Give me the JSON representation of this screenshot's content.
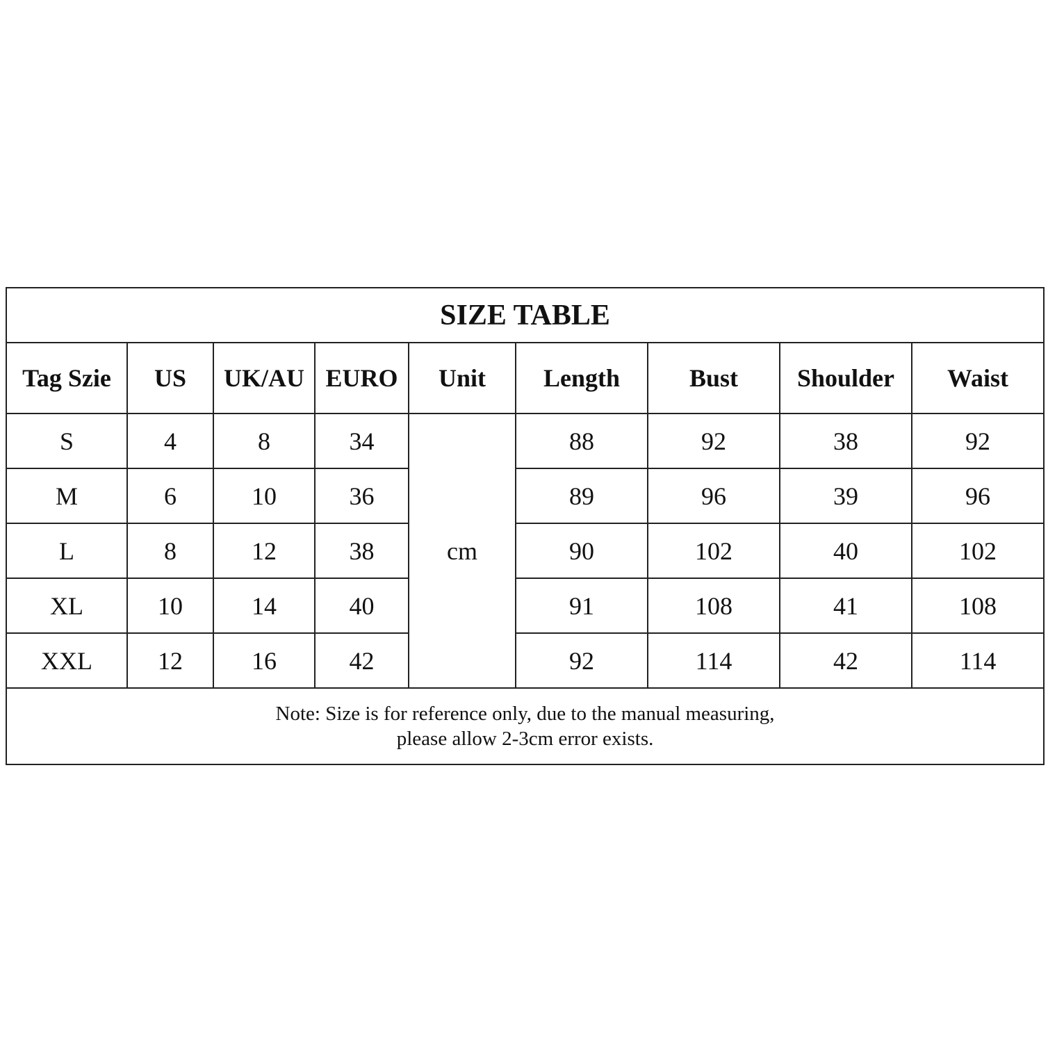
{
  "title": "SIZE TABLE",
  "headers": [
    "Tag Szie",
    "US",
    "UK/AU",
    "EURO",
    "Unit",
    "Length",
    "Bust",
    "Shoulder",
    "Waist"
  ],
  "unit": "cm",
  "rows": [
    {
      "tag": "S",
      "us": "4",
      "ukau": "8",
      "euro": "34",
      "length": "88",
      "bust": "92",
      "shoulder": "38",
      "waist": "92"
    },
    {
      "tag": "M",
      "us": "6",
      "ukau": "10",
      "euro": "36",
      "length": "89",
      "bust": "96",
      "shoulder": "39",
      "waist": "96"
    },
    {
      "tag": "L",
      "us": "8",
      "ukau": "12",
      "euro": "38",
      "length": "90",
      "bust": "102",
      "shoulder": "40",
      "waist": "102"
    },
    {
      "tag": "XL",
      "us": "10",
      "ukau": "14",
      "euro": "40",
      "length": "91",
      "bust": "108",
      "shoulder": "41",
      "waist": "108"
    },
    {
      "tag": "XXL",
      "us": "12",
      "ukau": "16",
      "euro": "42",
      "length": "92",
      "bust": "114",
      "shoulder": "42",
      "waist": "114"
    }
  ],
  "note": {
    "line1": "Note: Size is for reference only, due to the manual measuring,",
    "line2": "please allow 2-3cm error exists."
  }
}
